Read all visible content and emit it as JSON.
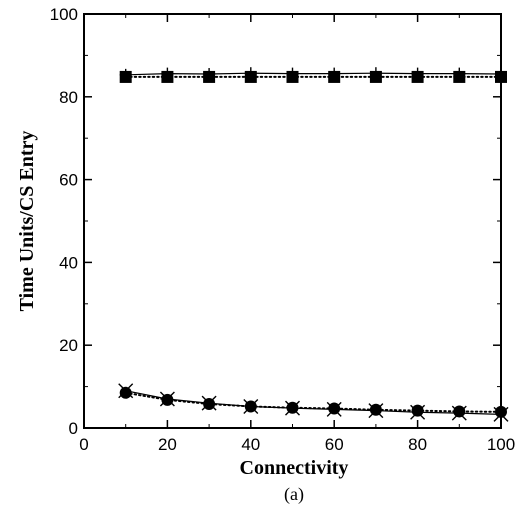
{
  "chart_data": {
    "type": "line",
    "xlabel": "Connectivity",
    "ylabel": "Time Units/CS Entry",
    "caption": "(a)",
    "xlim": [
      0,
      100
    ],
    "ylim": [
      0,
      100
    ],
    "xticks": [
      "0",
      "20",
      "40",
      "60",
      "80",
      "100"
    ],
    "yticks": [
      "0",
      "20",
      "40",
      "60",
      "80",
      "100"
    ],
    "grid": false,
    "legend": "none",
    "x": [
      10,
      20,
      30,
      40,
      50,
      60,
      70,
      80,
      90,
      100
    ],
    "series": [
      {
        "marker": "plus",
        "line": "solid",
        "color": "#000000",
        "values": [
          85.3,
          85.6,
          85.5,
          85.7,
          85.6,
          85.6,
          85.7,
          85.6,
          85.6,
          85.5
        ]
      },
      {
        "marker": "square",
        "line": "dotted",
        "color": "#000000",
        "values": [
          84.8,
          84.8,
          84.8,
          84.8,
          84.8,
          84.8,
          84.8,
          84.8,
          84.8,
          84.8
        ]
      },
      {
        "marker": "cross",
        "line": "solid",
        "color": "#000000",
        "values": [
          9.0,
          7.0,
          6.0,
          5.2,
          4.8,
          4.5,
          4.2,
          3.8,
          3.6,
          3.3
        ]
      },
      {
        "marker": "circle",
        "line": "dotted",
        "color": "#000000",
        "values": [
          8.5,
          6.8,
          5.8,
          5.2,
          4.9,
          4.7,
          4.4,
          4.2,
          4.0,
          3.9
        ]
      }
    ]
  }
}
